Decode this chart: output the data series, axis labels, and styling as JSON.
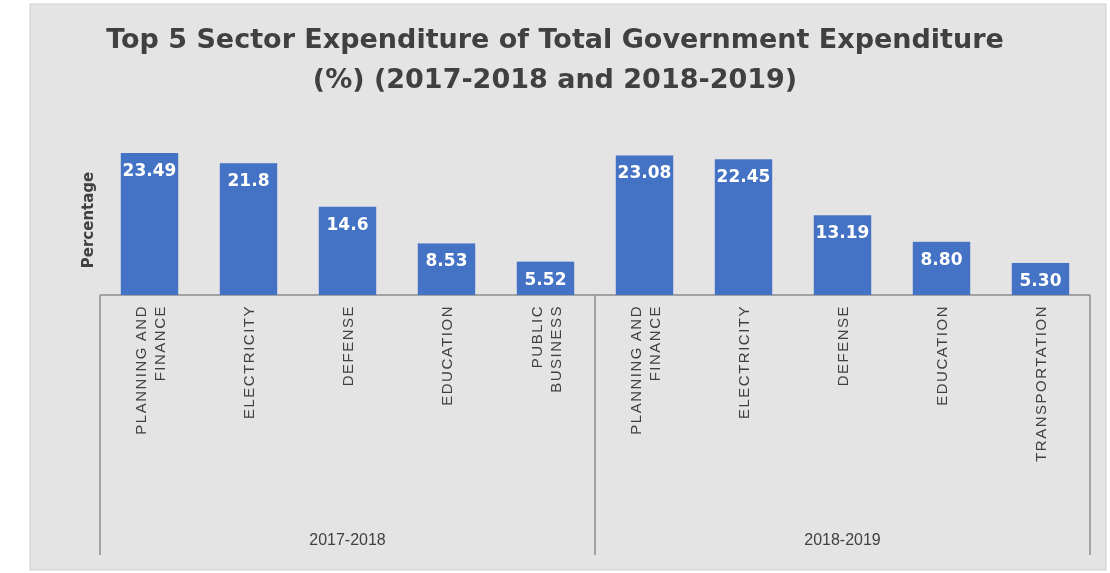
{
  "chart_data": {
    "type": "bar",
    "title": "Top 5 Sector Expenditure of Total Government Expenditure (%) (2017-2018 and 2018-2019)",
    "ylabel": "Percentage",
    "categories": [
      "PLANNING AND FINANCE",
      "ELECTRICITY",
      "DEFENSE",
      "EDUCATION",
      "PUBLIC BUSINESS",
      "PLANNING AND FINANCE",
      "ELECTRICITY",
      "DEFENSE",
      "EDUCATION",
      "TRANSPORTATION"
    ],
    "values": [
      23.49,
      21.8,
      14.6,
      8.53,
      5.52,
      23.08,
      22.45,
      13.19,
      8.8,
      5.3
    ],
    "value_labels": [
      "23.49",
      "21.8",
      "14.6",
      "8.53",
      "5.52",
      "23.08",
      "22.45",
      "13.19",
      "8.80",
      "5.30"
    ],
    "color": "#4472c4",
    "annotations": [
      "2017-2018",
      "2018-2019"
    ]
  }
}
